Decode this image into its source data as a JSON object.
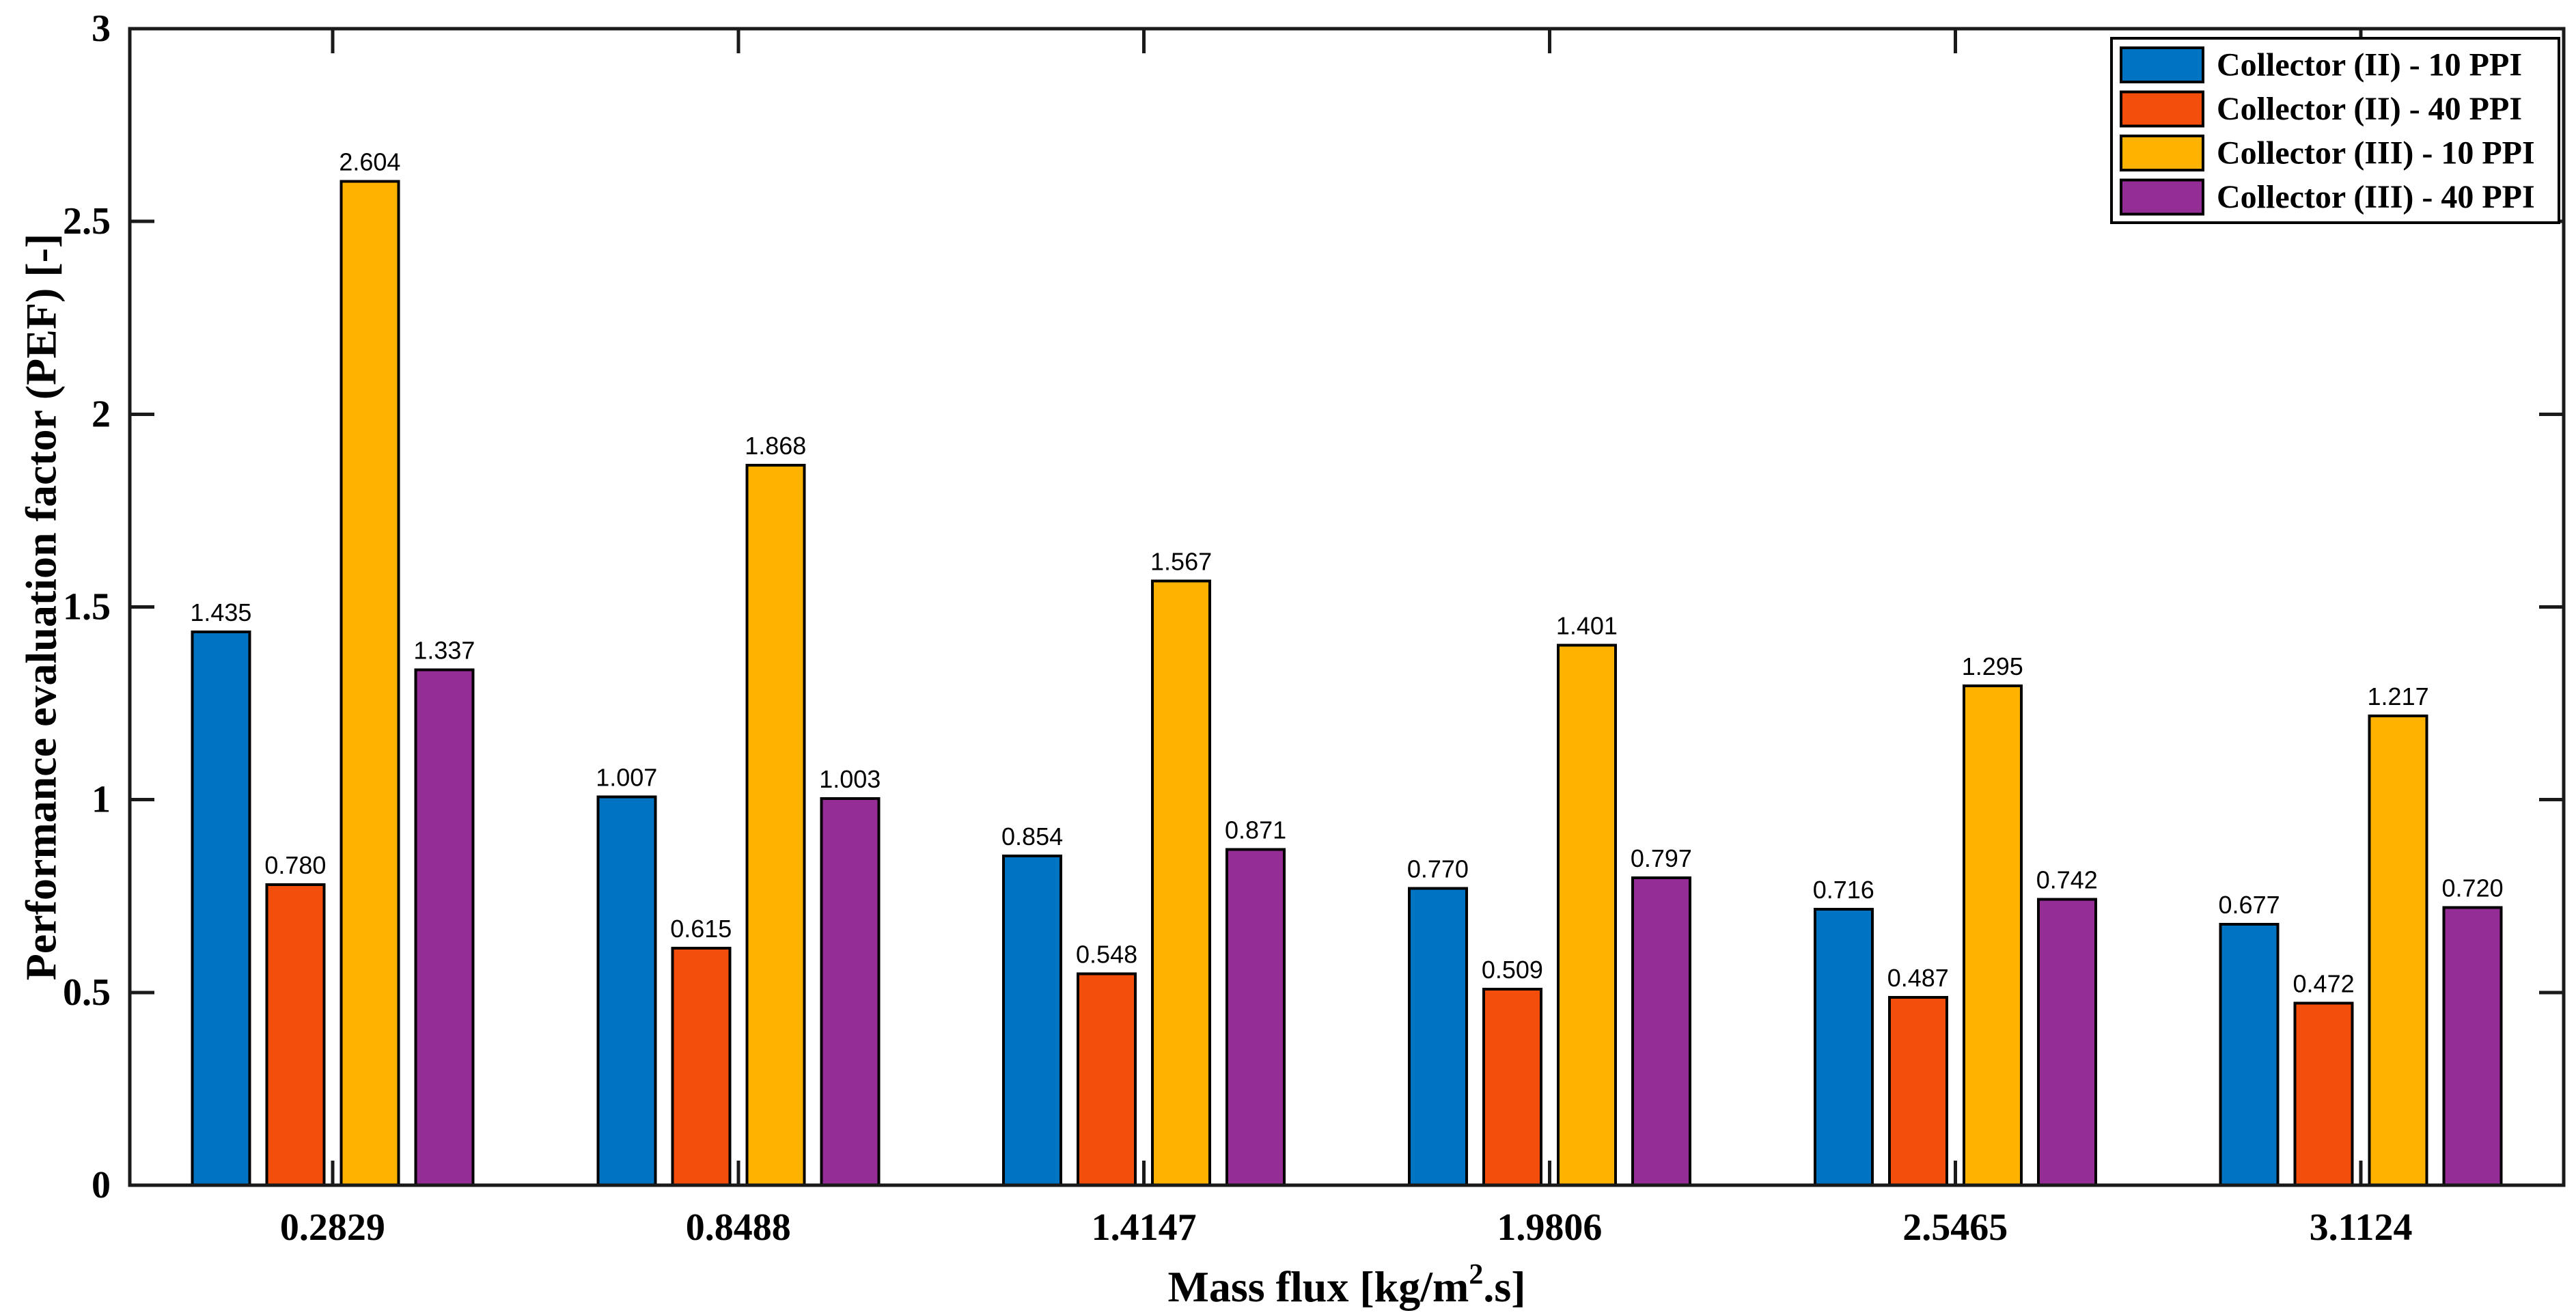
{
  "figure": {
    "background": "#ffffff",
    "frame_color": "#1a1a1a",
    "bar_outline_color": "#000000",
    "text_color": "#000000"
  },
  "chart_data": {
    "type": "bar",
    "title": "",
    "xlabel": "Mass flux [kg/m².s]",
    "xlabel_parts": {
      "pre": "Mass flux [kg/m",
      "sup": "2",
      "post": ".s]"
    },
    "ylabel": "Performance evaluation factor (PEF)  [-]",
    "categories": [
      "0.2829",
      "0.8488",
      "1.4147",
      "1.9806",
      "2.5465",
      "3.1124"
    ],
    "series": [
      {
        "name": "Collector (II) - 10 PPI",
        "color": "#0073C2",
        "values": [
          1.435,
          1.007,
          0.854,
          0.77,
          0.716,
          0.677
        ],
        "labels": [
          "1.435",
          "1.007",
          "0.854",
          "0.770",
          "0.716",
          "0.677"
        ]
      },
      {
        "name": "Collector (II) - 40 PPI",
        "color": "#F34E0B",
        "values": [
          0.78,
          0.615,
          0.548,
          0.509,
          0.487,
          0.472
        ],
        "labels": [
          "0.780",
          "0.615",
          "0.548",
          "0.509",
          "0.487",
          "0.472"
        ]
      },
      {
        "name": "Collector (III) - 10 PPI",
        "color": "#FFB200",
        "values": [
          2.604,
          1.868,
          1.567,
          1.401,
          1.295,
          1.217
        ],
        "labels": [
          "2.604",
          "1.868",
          "1.567",
          "1.401",
          "1.295",
          "1.217"
        ]
      },
      {
        "name": "Collector (III) - 40 PPI",
        "color": "#942D95",
        "values": [
          1.337,
          1.003,
          0.871,
          0.797,
          0.742,
          0.72
        ],
        "labels": [
          "1.337",
          "1.003",
          "0.871",
          "0.797",
          "0.742",
          "0.720"
        ]
      }
    ],
    "ylim": [
      0,
      3
    ],
    "yticks": [
      0,
      0.5,
      1,
      1.5,
      2,
      2.5,
      3
    ],
    "ytick_labels": [
      "0",
      "0.5",
      "1",
      "1.5",
      "2",
      "2.5",
      "3"
    ],
    "grid": false,
    "legend_position": "top-right",
    "legend_entries": [
      "Collector (II) - 10 PPI",
      "Collector (II) - 40 PPI",
      "Collector (III) - 10 PPI",
      "Collector (III) - 40 PPI"
    ]
  }
}
